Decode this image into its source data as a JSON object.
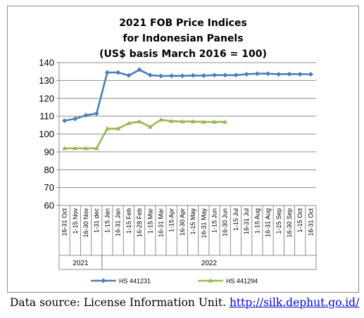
{
  "chart_data": {
    "type": "line",
    "title": "2021 FOB Price Indices",
    "subtitle": "for Indonesian Panels",
    "subtitle2": "(US$ basis March 2016 = 100)",
    "ylim": [
      60,
      140
    ],
    "y_ticks": [
      60,
      70,
      80,
      90,
      100,
      110,
      120,
      130,
      140
    ],
    "grid": true,
    "legend_position": "bottom",
    "categories": [
      "16-31 Oct",
      "1-15 Nov",
      "16-30 Nov",
      "1-31 dec",
      "1-15 Jan",
      "16-31 Jan",
      "1-15 Feb",
      "16-28 Feb",
      "1-15 Mar",
      "16-31 Mar",
      "1-15 Apr",
      "16-30 Apr",
      "1-15 May",
      "16-31 May",
      "1-15 Jun",
      "16-30 Jun",
      "1-15 Jul",
      "16-31 Jul",
      "1-15 Aug",
      "16-31 Aug",
      "1-15 Sep",
      "16-30 Sep",
      "1-15 Oct",
      "16-31 Oct"
    ],
    "groups": [
      {
        "label": "2021",
        "start": 0,
        "end": 3
      },
      {
        "label": "2022",
        "start": 4,
        "end": 23
      }
    ],
    "series": [
      {
        "name": "HS 441231",
        "color": "#4a7ebb",
        "values": [
          107.5,
          108.5,
          110.5,
          111.5,
          134.5,
          134.5,
          132.8,
          136,
          133,
          132.5,
          132.6,
          132.6,
          132.8,
          132.7,
          133,
          133,
          133,
          133.5,
          133.8,
          133.8,
          133.5,
          133.6,
          133.5,
          133.5
        ]
      },
      {
        "name": "HS 441294",
        "color": "#98b954",
        "values": [
          92,
          92,
          92,
          92,
          103,
          103,
          106,
          107,
          104,
          108,
          107.2,
          107,
          107,
          106.8,
          106.8,
          106.8,
          null,
          null,
          null,
          null,
          null,
          null,
          null,
          null
        ]
      }
    ]
  },
  "footer": {
    "source_text": "Data source: License Information Unit.",
    "source_url": "http://silk.dephut.go.id/"
  }
}
